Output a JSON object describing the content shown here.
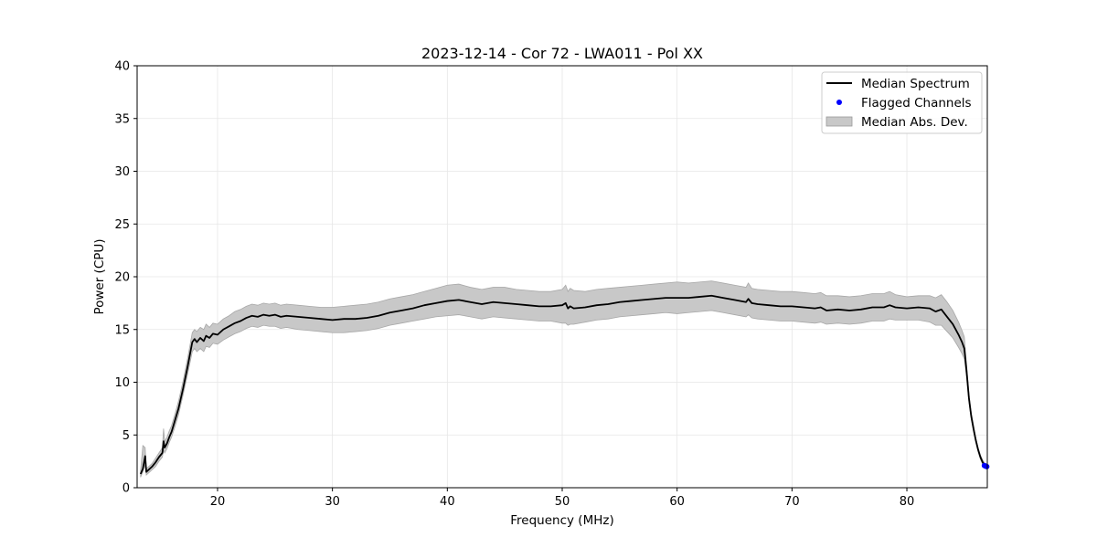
{
  "chart_data": {
    "type": "line",
    "title": "2023-12-14 - Cor 72 - LWA011 - Pol XX",
    "xlabel": "Frequency (MHz)",
    "ylabel": "Power (CPU)",
    "xlim": [
      13,
      87
    ],
    "ylim": [
      0,
      40
    ],
    "xticks": [
      20,
      30,
      40,
      50,
      60,
      70,
      80
    ],
    "yticks": [
      0,
      5,
      10,
      15,
      20,
      25,
      30,
      35,
      40
    ],
    "grid": true,
    "legend": {
      "placement": "top-right",
      "entries": [
        {
          "label": "Median Spectrum",
          "kind": "line",
          "color": "#000000"
        },
        {
          "label": "Flagged Channels",
          "kind": "marker",
          "color": "#0000ff"
        },
        {
          "label": "Median Abs. Dev.",
          "kind": "band",
          "color": "#c8c8c8"
        }
      ]
    },
    "series": [
      {
        "name": "Median Spectrum",
        "type": "line",
        "color": "#000000",
        "x": [
          13.3,
          13.5,
          13.7,
          13.8,
          13.9,
          14.0,
          14.3,
          14.6,
          14.9,
          15.2,
          15.3,
          15.4,
          15.6,
          15.8,
          16.0,
          16.3,
          16.6,
          17.0,
          17.4,
          17.8,
          18.0,
          18.2,
          18.5,
          18.8,
          19.0,
          19.3,
          19.6,
          20.0,
          20.5,
          21.0,
          21.5,
          22.0,
          22.5,
          23.0,
          23.5,
          24.0,
          24.5,
          25.0,
          25.5,
          26.0,
          27.0,
          28.0,
          29.0,
          30.0,
          31.0,
          32.0,
          33.0,
          34.0,
          35.0,
          36.0,
          37.0,
          38.0,
          39.0,
          40.0,
          41.0,
          42.0,
          43.0,
          44.0,
          45.0,
          46.0,
          47.0,
          48.0,
          49.0,
          50.0,
          50.3,
          50.5,
          50.7,
          51.0,
          52.0,
          53.0,
          54.0,
          55.0,
          56.0,
          57.0,
          58.0,
          59.0,
          60.0,
          61.0,
          62.0,
          63.0,
          64.0,
          65.0,
          66.0,
          66.2,
          66.5,
          67.0,
          68.0,
          69.0,
          70.0,
          71.0,
          72.0,
          72.5,
          73.0,
          74.0,
          75.0,
          76.0,
          77.0,
          78.0,
          78.5,
          79.0,
          80.0,
          81.0,
          82.0,
          82.5,
          83.0,
          83.5,
          84.0,
          84.5,
          84.8,
          85.0,
          85.2,
          85.4,
          85.6,
          85.8,
          86.0,
          86.2,
          86.4,
          86.6,
          86.8
        ],
        "y": [
          1.3,
          1.8,
          3.0,
          1.5,
          1.6,
          1.7,
          2.0,
          2.4,
          2.9,
          3.3,
          4.4,
          3.8,
          4.2,
          4.8,
          5.3,
          6.4,
          7.5,
          9.4,
          11.5,
          13.8,
          14.1,
          13.8,
          14.2,
          13.9,
          14.4,
          14.2,
          14.6,
          14.5,
          15.0,
          15.3,
          15.6,
          15.8,
          16.1,
          16.3,
          16.2,
          16.4,
          16.3,
          16.4,
          16.2,
          16.3,
          16.2,
          16.1,
          16.0,
          15.9,
          16.0,
          16.0,
          16.1,
          16.3,
          16.6,
          16.8,
          17.0,
          17.3,
          17.5,
          17.7,
          17.8,
          17.6,
          17.4,
          17.6,
          17.5,
          17.4,
          17.3,
          17.2,
          17.2,
          17.3,
          17.5,
          17.0,
          17.2,
          17.0,
          17.1,
          17.3,
          17.4,
          17.6,
          17.7,
          17.8,
          17.9,
          18.0,
          18.0,
          18.0,
          18.1,
          18.2,
          18.0,
          17.8,
          17.6,
          17.9,
          17.5,
          17.4,
          17.3,
          17.2,
          17.2,
          17.1,
          17.0,
          17.1,
          16.8,
          16.9,
          16.8,
          16.9,
          17.1,
          17.1,
          17.3,
          17.1,
          17.0,
          17.1,
          17.0,
          16.7,
          16.9,
          16.2,
          15.5,
          14.5,
          13.8,
          13.2,
          11.0,
          8.5,
          6.8,
          5.6,
          4.5,
          3.6,
          2.9,
          2.4,
          2.1
        ],
        "mad_lower": [
          1.0,
          1.5,
          2.2,
          1.2,
          1.3,
          1.4,
          1.7,
          2.0,
          2.5,
          2.9,
          3.6,
          3.3,
          3.7,
          4.3,
          4.8,
          5.8,
          6.9,
          8.8,
          10.8,
          12.9,
          13.2,
          12.9,
          13.2,
          12.9,
          13.4,
          13.3,
          13.7,
          13.6,
          14.0,
          14.3,
          14.6,
          14.8,
          15.1,
          15.3,
          15.2,
          15.4,
          15.3,
          15.3,
          15.1,
          15.2,
          15.0,
          14.9,
          14.8,
          14.7,
          14.7,
          14.8,
          14.9,
          15.1,
          15.4,
          15.6,
          15.8,
          16.0,
          16.2,
          16.3,
          16.4,
          16.2,
          16.0,
          16.2,
          16.1,
          16.0,
          15.9,
          15.8,
          15.8,
          15.6,
          15.6,
          15.4,
          15.5,
          15.5,
          15.7,
          15.9,
          16.0,
          16.2,
          16.3,
          16.4,
          16.5,
          16.6,
          16.5,
          16.6,
          16.7,
          16.8,
          16.6,
          16.4,
          16.2,
          16.4,
          16.1,
          16.0,
          15.9,
          15.8,
          15.8,
          15.7,
          15.6,
          15.7,
          15.5,
          15.6,
          15.5,
          15.6,
          15.8,
          15.8,
          16.0,
          15.9,
          15.9,
          15.9,
          15.7,
          15.4,
          15.4,
          14.8,
          14.2,
          13.3,
          12.7,
          12.2,
          10.4,
          8.1,
          6.5,
          5.3,
          4.3,
          3.4,
          2.7,
          2.2,
          1.9
        ],
        "mad_upper": [
          1.6,
          4.0,
          3.8,
          1.8,
          1.9,
          2.0,
          2.3,
          2.8,
          3.3,
          3.8,
          5.6,
          4.4,
          4.8,
          5.4,
          5.9,
          7.0,
          8.2,
          10.1,
          12.3,
          14.7,
          15.0,
          14.8,
          15.2,
          15.0,
          15.5,
          15.2,
          15.6,
          15.5,
          16.0,
          16.3,
          16.7,
          16.9,
          17.2,
          17.4,
          17.3,
          17.5,
          17.4,
          17.5,
          17.3,
          17.4,
          17.3,
          17.2,
          17.1,
          17.1,
          17.2,
          17.3,
          17.4,
          17.6,
          17.9,
          18.1,
          18.3,
          18.6,
          18.9,
          19.2,
          19.3,
          19.0,
          18.8,
          19.0,
          19.0,
          18.8,
          18.7,
          18.6,
          18.6,
          18.8,
          19.2,
          18.6,
          18.9,
          18.7,
          18.6,
          18.8,
          18.9,
          19.0,
          19.1,
          19.2,
          19.3,
          19.4,
          19.5,
          19.4,
          19.5,
          19.6,
          19.4,
          19.2,
          19.0,
          19.4,
          18.9,
          18.8,
          18.7,
          18.6,
          18.6,
          18.5,
          18.4,
          18.5,
          18.2,
          18.2,
          18.1,
          18.2,
          18.4,
          18.4,
          18.6,
          18.3,
          18.1,
          18.2,
          18.2,
          18.0,
          18.3,
          17.6,
          16.8,
          15.7,
          14.9,
          14.3,
          11.6,
          8.9,
          7.1,
          5.9,
          4.7,
          3.8,
          3.1,
          2.6,
          2.3
        ]
      },
      {
        "name": "Flagged Channels",
        "type": "scatter",
        "color": "#0000ff",
        "x": [
          86.75,
          86.85,
          86.95
        ],
        "y": [
          2.1,
          2.05,
          2.0
        ]
      }
    ]
  }
}
